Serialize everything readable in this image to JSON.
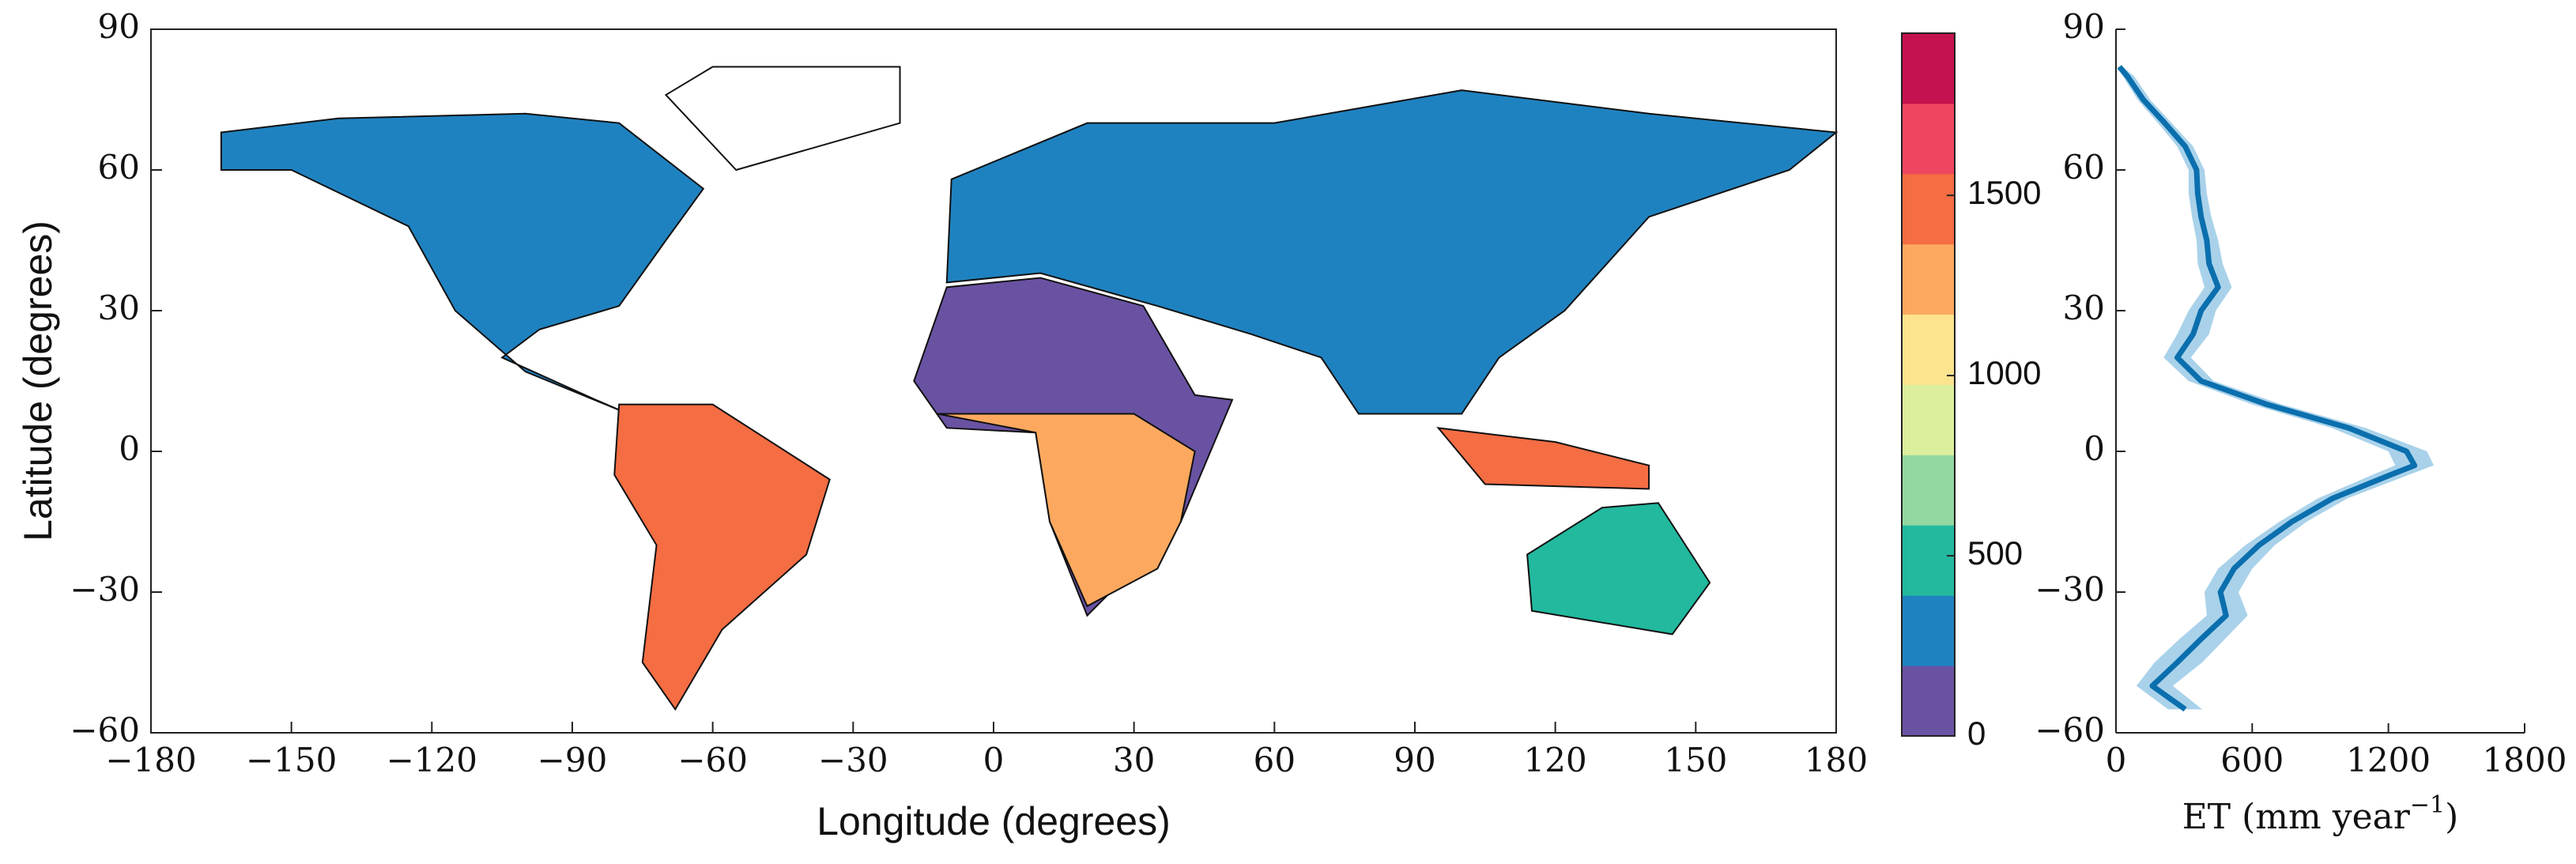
{
  "chart_data": [
    {
      "type": "map",
      "xlabel": "Longitude (degrees)",
      "ylabel": "Latitude (degrees)",
      "xlim": [
        -180,
        180
      ],
      "ylim": [
        -60,
        90
      ],
      "xticks": [
        {
          "value": -180,
          "label": "−180"
        },
        {
          "value": -150,
          "label": "−150"
        },
        {
          "value": -120,
          "label": "−120"
        },
        {
          "value": -90,
          "label": "−90"
        },
        {
          "value": -60,
          "label": "−60"
        },
        {
          "value": -30,
          "label": "−30"
        },
        0,
        30,
        60,
        90,
        120,
        150,
        180
      ],
      "yticks": [
        {
          "value": -60,
          "label": "−60"
        },
        {
          "value": -30,
          "label": "−30"
        },
        0,
        30,
        60,
        90
      ],
      "colorbar": {
        "clim": [
          0,
          1950
        ],
        "ticks": [
          0,
          500,
          1000,
          1500
        ],
        "colors": [
          "#6a52a3",
          "#1f82c0",
          "#22b99f",
          "#92d8a0",
          "#dcef9c",
          "#fce38e",
          "#fca95f",
          "#f46d43",
          "#ef4560",
          "#c4114f"
        ]
      }
    },
    {
      "type": "line",
      "xlabel": "ET (mm year",
      "xlabel_sup": "−1",
      "xlabel_end": ")",
      "xlim": [
        0,
        1800
      ],
      "ylim": [
        -60,
        90
      ],
      "xticks": [
        0,
        600,
        1200,
        1800
      ],
      "yticks": [
        {
          "value": -60,
          "label": "−60"
        },
        {
          "value": -30,
          "label": "−30"
        },
        0,
        30,
        60,
        90
      ],
      "y": [
        82,
        80,
        75,
        70,
        65,
        60,
        55,
        50,
        45,
        40,
        35,
        30,
        25,
        20,
        15,
        10,
        5,
        0,
        -3,
        -5,
        -10,
        -15,
        -20,
        -25,
        -30,
        -35,
        -40,
        -45,
        -50,
        -55
      ],
      "series": [
        {
          "color": "#0b6fae",
          "band_color": "#a9d2ea",
          "values": [
            15,
            50,
            120,
            215,
            305,
            355,
            360,
            375,
            400,
            410,
            450,
            375,
            340,
            270,
            375,
            665,
            1025,
            1280,
            1315,
            1210,
            955,
            775,
            630,
            520,
            460,
            485,
            375,
            270,
            160,
            305
          ],
          "lower": [
            5,
            30,
            95,
            185,
            270,
            320,
            320,
            335,
            355,
            360,
            390,
            320,
            270,
            210,
            320,
            600,
            950,
            1200,
            1230,
            1130,
            890,
            720,
            570,
            450,
            390,
            400,
            280,
            170,
            90,
            230
          ],
          "upper": [
            30,
            80,
            150,
            245,
            340,
            390,
            400,
            420,
            450,
            470,
            510,
            440,
            410,
            330,
            430,
            730,
            1100,
            1370,
            1400,
            1290,
            1020,
            840,
            700,
            600,
            540,
            580,
            480,
            380,
            250,
            380
          ]
        }
      ]
    }
  ]
}
